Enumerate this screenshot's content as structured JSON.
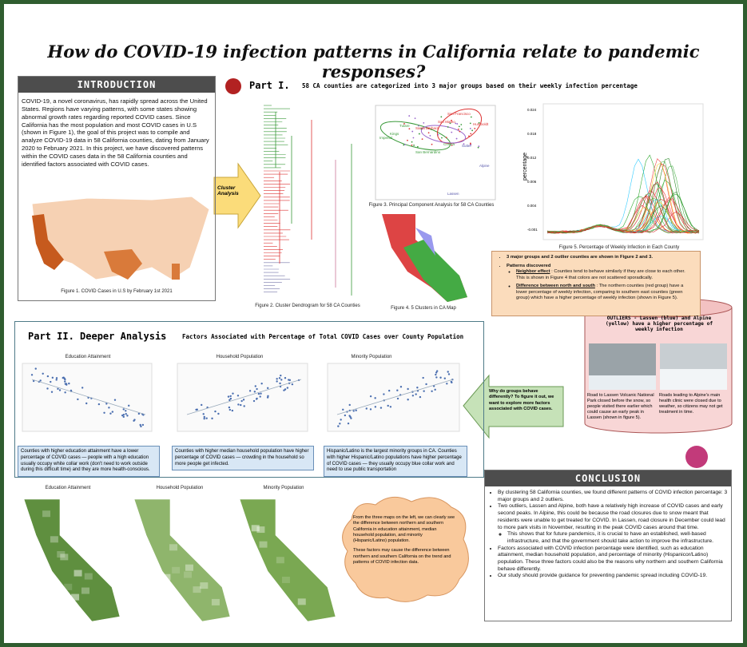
{
  "title": "How do COVID-19 infection patterns in California relate to pandemic responses?",
  "introduction": {
    "heading": "INTRODUCTION",
    "body": "COVID-19, a novel coronavirus, has rapidly spread across the United States. Regions have varying patterns, with some states showing abnormal growth rates regarding reported COVID cases. Since California has the most population and most COVID cases in U.S (shown in Figure 1), the goal of this project was to compile and analyze COVID-19 data in 58 California counties, dating from January 2020 to February 2021. In this project, we have discovered patterns within the COVID cases data in the 58 California counties and identified factors associated with COVID cases.",
    "caption": "Figure 1. COVID Cases in U.S by February 1st 2021"
  },
  "part1": {
    "label": "Part I.",
    "subtitle": "58 CA counties are categorized into 3 major groups based on their weekly infection percentage",
    "arrow_label": "Cluster Analysis",
    "fig2_caption": "Figure 2. Cluster Dendrogram for 58 CA Counties",
    "fig3_caption": "Figure 3. Principal Component Analysis for 58 CA Counties",
    "fig3_points": [
      "San Francisco",
      "San Mateo",
      "Santa Barbara",
      "Humboldt",
      "Tulare",
      "Imperial",
      "Kings",
      "Colusa",
      "San Bernardino",
      "Sutter",
      "Alpine",
      "Lassen"
    ],
    "fig4_caption": "Figure 4. 5 Clusters in CA Map",
    "fig5_caption": "Figure 5. Percentage of Weekly Infection in Each County",
    "fig5_ylabel": "percentage",
    "fig5_yticks": [
      "0.024",
      "0.018",
      "0.012",
      "0.006",
      "0.004",
      "-0.001"
    ],
    "findings": {
      "summary": "3 major groups and 2 outlier counties are shown in Figure 2 and 3.",
      "patterns_label": "Patterns discovered",
      "items": [
        {
          "lead": "Neighbor effect",
          "text": " : Counties tend to behave similarly if they are close to each other. This is shown in Figure 4 that colors are not scattered sporadically."
        },
        {
          "lead": "Difference between north and south",
          "text": " : The northern counties (red group) have a lower percentage of weekly infection, comparing to southern east counties (green group) which have a higher percentage of weekly infection (shown in Figure 5)."
        }
      ]
    }
  },
  "part2": {
    "label": "Part II. Deeper Analysis",
    "subtitle": "Factors Associated with Percentage of Total COVID Cases over County Population",
    "charts": [
      {
        "title": "Education Attainment",
        "note": "Counties with higher education attainment have a lower percentage of COVID cases — people with a high education usually occupy white collar work (don't need to work outside during this difficult time) and they are more health-conscious."
      },
      {
        "title": "Household Population",
        "note": "Counties with higher median household population have higher percentage of COVID cases — crowding in the household so more people get infected."
      },
      {
        "title": "Minority Population",
        "note": "Hispanic/Latino is the largest minority groups in CA. Counties with higher Hispanic/Latino populations have higher percentage of COVID cases — they usually occupy blue collar work and need to use public transportation"
      }
    ],
    "maps": [
      "Education Attainment",
      "Household Population",
      "Minority Population"
    ],
    "cloud": [
      "From the three maps on the left, we can clearly see the difference between northern and southern California in education attainment, median household population, and minority (Hispanic/Latino) population.",
      "These factors may cause the difference between northern and southern California on the trend and patterns of COVID infection data."
    ]
  },
  "why": "Why do groups behave differently? To figure it out, we want to explore more factors associated with COVID cases.",
  "outliers": {
    "heading": "OUTLIERS - Lassen (blue) and Alpine (yellow) have a higher percentage of weekly infection",
    "captions": [
      "Road to Lassen Volcanic National Park closed before the snow, so people visited there earlier which could cause an early peak in Lassen (shown in figure 5).",
      "Roads leading to Alpine's main health clinic were closed due to weather, so citizens may not get treatment in time."
    ]
  },
  "conclusion": {
    "heading": "CONCLUSION",
    "items": [
      "By clustering 58 California counties, we found different patterns of COVID infection percentage: 3 major groups and 2 outliers.",
      "Two outliers, Lassen and Alpine, both have a relatively high increase of COVID cases and early second peaks. In Alpine, this could be because the road closures due to snow meant that residents were unable to get treated for COVID. In Lassen, road closure in December could lead to more park visits in November, resulting in the peak COVID cases around that time.",
      "Factors associated with COVID infection percentage were identified, such as education attainment, median household population, and percentage of minority (Hispanicor/Latino) population. These three factors could also be the reasons why northern and southern California behave differently.",
      "Our study should provide guidance for preventing pandemic spread including COVID-19."
    ],
    "sub_item": "This shows that for future pandemics, it is crucial to have an established, well-based infrastructure, and that the government should take action to improve the infrastructure."
  }
}
